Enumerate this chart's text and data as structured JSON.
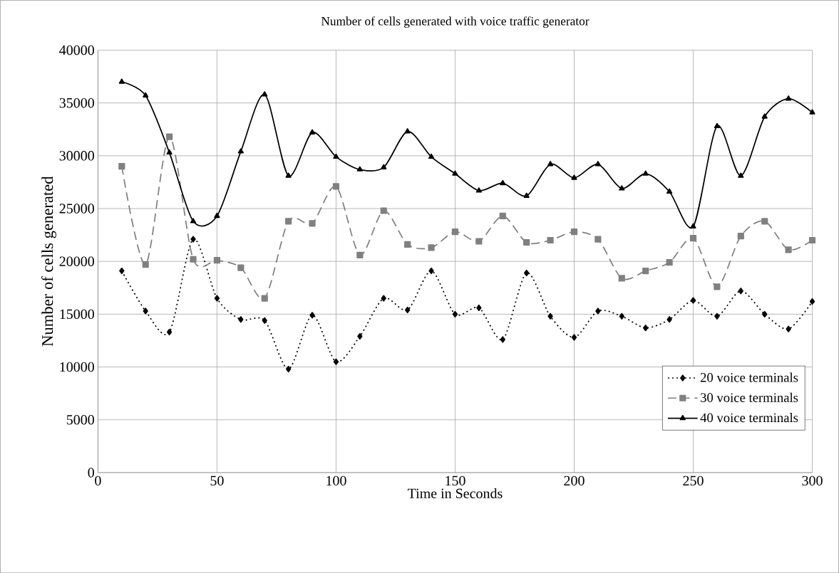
{
  "chart_data": {
    "type": "line",
    "title": "Number of cells generated with voice traffic generator",
    "xlabel": "Time in Seconds",
    "ylabel": "Number of cells generated",
    "x": [
      10,
      20,
      30,
      40,
      50,
      60,
      70,
      80,
      90,
      100,
      110,
      120,
      130,
      140,
      150,
      160,
      170,
      180,
      190,
      200,
      210,
      220,
      230,
      240,
      250,
      260,
      270,
      280,
      290,
      300
    ],
    "series": [
      {
        "name": "20 voice terminals",
        "color": "#000000",
        "marker": "diamond",
        "line_style": "dotted",
        "values": [
          19100,
          15300,
          13300,
          22100,
          16500,
          14500,
          14400,
          9800,
          14900,
          10500,
          12900,
          16500,
          15400,
          19100,
          15000,
          15600,
          12600,
          18900,
          14800,
          12800,
          15300,
          14800,
          13700,
          14500,
          16300,
          14800,
          17200,
          15000,
          13600,
          16200
        ]
      },
      {
        "name": "30 voice terminals",
        "color": "#808080",
        "marker": "square",
        "line_style": "dashed",
        "values": [
          29000,
          19700,
          31800,
          20200,
          20100,
          19400,
          16500,
          23800,
          23600,
          27100,
          20600,
          24800,
          21600,
          21300,
          22800,
          21900,
          24300,
          21800,
          22000,
          22800,
          22100,
          18400,
          19100,
          19900,
          22200,
          17600,
          22400,
          23800,
          21100,
          22000
        ]
      },
      {
        "name": "40 voice terminals",
        "color": "#000000",
        "marker": "triangle",
        "line_style": "solid",
        "values": [
          37000,
          35700,
          30300,
          23800,
          24300,
          30400,
          35800,
          28100,
          32200,
          29900,
          28700,
          28900,
          32300,
          29900,
          28300,
          26700,
          27400,
          26200,
          29200,
          27900,
          29200,
          26900,
          28300,
          26600,
          23300,
          32800,
          28100,
          33700,
          35400,
          34100
        ]
      }
    ],
    "xlim": [
      0,
      300
    ],
    "xticks": [
      0,
      50,
      100,
      150,
      200,
      250,
      300
    ],
    "ylim": [
      0,
      40000
    ],
    "yticks": [
      0,
      5000,
      10000,
      15000,
      20000,
      25000,
      30000,
      35000,
      40000
    ],
    "grid": true,
    "legend": "bottom right"
  }
}
